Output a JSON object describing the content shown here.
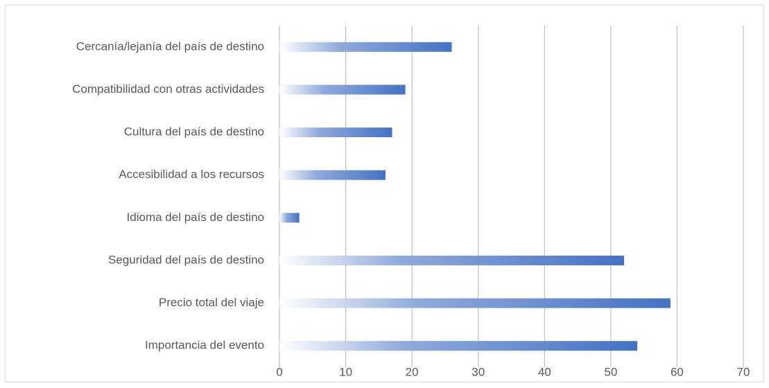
{
  "chart_data": {
    "type": "bar",
    "orientation": "horizontal",
    "categories": [
      "Cercanía/lejanía del país de destino",
      "Compatibilidad con otras actividades",
      "Cultura del país de destino",
      "Accesibilidad a los recursos",
      "Idioma del país de destino",
      "Seguridad del país de destino",
      "Precio total del viaje",
      "Importancia del evento"
    ],
    "values": [
      26,
      19,
      17,
      16,
      3,
      52,
      59,
      54
    ],
    "color": "#4472c4",
    "xlim": [
      0,
      70
    ],
    "xticks": [
      0,
      10,
      20,
      30,
      40,
      50,
      60,
      70
    ],
    "grid": true
  }
}
